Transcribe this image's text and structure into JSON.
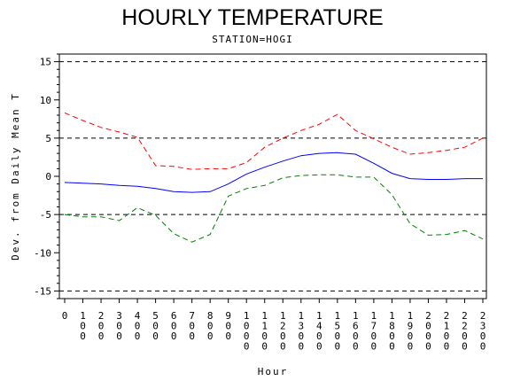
{
  "chart_data": {
    "type": "line",
    "title": "HOURLY TEMPERATURE",
    "subtitle": "STATION=HOGI",
    "xlabel": "Hour",
    "ylabel": "Dev. from Daily Mean T",
    "x": [
      0,
      100,
      200,
      300,
      400,
      500,
      600,
      700,
      800,
      900,
      1000,
      1100,
      1200,
      1300,
      1400,
      1500,
      1600,
      1700,
      1800,
      1900,
      2000,
      2100,
      2200,
      2300
    ],
    "x_tick_labels": [
      "0",
      "100",
      "200",
      "300",
      "400",
      "500",
      "600",
      "700",
      "800",
      "900",
      "1000",
      "1100",
      "1200",
      "1300",
      "1400",
      "1500",
      "1600",
      "1700",
      "1800",
      "1900",
      "2000",
      "2100",
      "2200",
      "2300"
    ],
    "ylim": [
      -16,
      16
    ],
    "y_ticks": [
      -15,
      -10,
      -5,
      0,
      5,
      10,
      15
    ],
    "reference_lines": [
      -15,
      -5,
      5,
      15
    ],
    "grid": false,
    "legend": "none",
    "series": [
      {
        "color": "#ff0000",
        "style": "dashed",
        "values": [
          8.3,
          7.3,
          6.4,
          5.8,
          5.1,
          1.4,
          1.3,
          0.9,
          1.0,
          1.0,
          1.8,
          3.8,
          5.0,
          6.0,
          6.8,
          8.1,
          6.0,
          4.9,
          3.8,
          2.9,
          3.1,
          3.4,
          3.8,
          5.0
        ]
      },
      {
        "color": "#0000ff",
        "style": "solid",
        "values": [
          -0.8,
          -0.9,
          -1.0,
          -1.2,
          -1.3,
          -1.6,
          -2.0,
          -2.1,
          -2.0,
          -1.0,
          0.3,
          1.2,
          2.0,
          2.7,
          3.0,
          3.1,
          2.9,
          1.7,
          0.4,
          -0.3,
          -0.4,
          -0.4,
          -0.3,
          -0.3
        ]
      },
      {
        "color": "#008000",
        "style": "dashed",
        "values": [
          -5.0,
          -5.3,
          -5.3,
          -5.8,
          -4.1,
          -5.1,
          -7.5,
          -8.6,
          -7.6,
          -2.6,
          -1.6,
          -1.2,
          -0.2,
          0.1,
          0.2,
          0.2,
          -0.1,
          -0.1,
          -2.4,
          -6.2,
          -7.7,
          -7.6,
          -7.1,
          -8.2
        ]
      }
    ]
  },
  "colors": {
    "axis": "#000000",
    "reference_line": "#000000"
  }
}
